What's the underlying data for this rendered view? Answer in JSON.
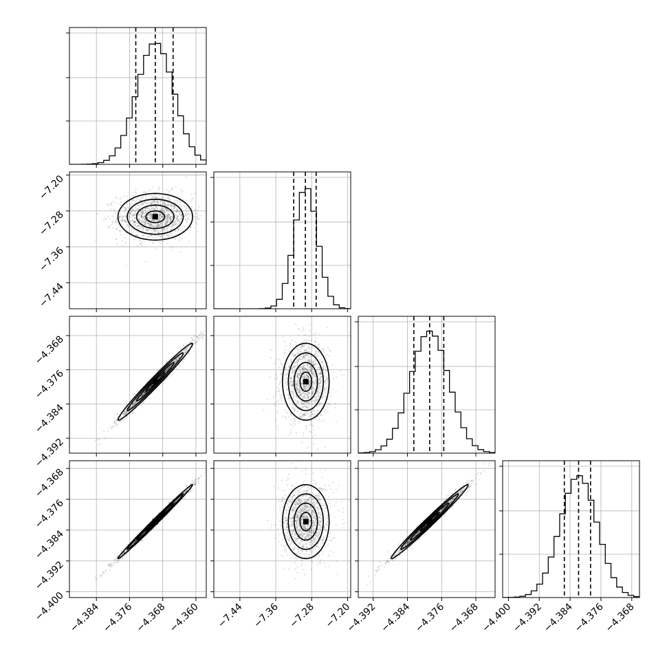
{
  "chart_data": {
    "type": "corner",
    "grid": true,
    "quantile_lines": "dashed",
    "parameters": [
      {
        "ticks": [
          -4.384,
          -4.376,
          -4.368,
          -4.36
        ],
        "tick_labels": [
          "−4.384",
          "−4.376",
          "−4.368",
          "−4.360"
        ],
        "range": [
          -4.3905,
          -4.3575
        ],
        "quantiles": [
          -4.3745,
          -4.3698,
          -4.3655
        ],
        "center": -4.3698,
        "sigma": 0.0045
      },
      {
        "ticks": [
          -7.44,
          -7.36,
          -7.28,
          -7.2
        ],
        "tick_labels": [
          "−7.44",
          "−7.36",
          "−7.28",
          "−7.20"
        ],
        "range": [
          -7.498,
          -7.193
        ],
        "quantiles": [
          -7.32,
          -7.294,
          -7.27
        ],
        "center": -7.293,
        "sigma": 0.026
      },
      {
        "ticks": [
          -4.392,
          -4.384,
          -4.376,
          -4.368
        ],
        "tick_labels": [
          "−4.392",
          "−4.384",
          "−4.376",
          "−4.368"
        ],
        "range": [
          -4.3955,
          -4.3635
        ],
        "quantiles": [
          -4.3825,
          -4.3788,
          -4.3755
        ],
        "center": -4.3788,
        "sigma": 0.0045
      },
      {
        "ticks": [
          -4.4,
          -4.392,
          -4.384,
          -4.376,
          -4.368
        ],
        "tick_labels": [
          "−4.400",
          "−4.392",
          "−4.384",
          "−4.376",
          "−4.368"
        ],
        "range": [
          -4.4015,
          -4.366
        ],
        "quantiles": [
          -4.3855,
          -4.3818,
          -4.3787
        ],
        "center": -4.3818,
        "sigma": 0.0048
      }
    ],
    "correlations": [
      [
        1,
        0.0,
        0.985,
        0.995
      ],
      [
        0.0,
        1,
        0.0,
        0.0
      ],
      [
        0.985,
        0.0,
        1,
        0.988
      ],
      [
        0.995,
        0.0,
        0.988,
        1
      ]
    ],
    "contour_levels_sigma": [
      0.5,
      1.0,
      1.5,
      2.0
    ]
  }
}
